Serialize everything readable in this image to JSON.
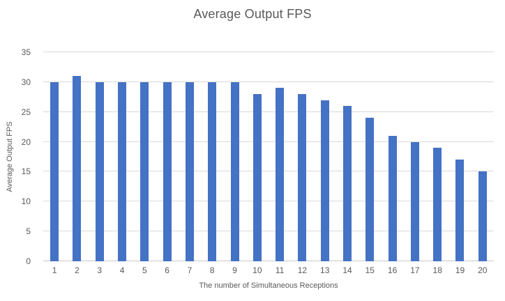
{
  "chart_data": {
    "type": "bar",
    "title": "Average Output FPS",
    "xlabel": "The number of Simultaneous Receptions",
    "ylabel": "Average Output FPS",
    "categories": [
      "1",
      "2",
      "3",
      "4",
      "5",
      "6",
      "7",
      "8",
      "9",
      "10",
      "11",
      "12",
      "13",
      "14",
      "15",
      "16",
      "17",
      "18",
      "19",
      "20"
    ],
    "values": [
      30,
      31,
      30,
      30,
      30,
      30,
      30,
      30,
      30,
      28,
      29,
      28,
      27,
      26,
      24,
      21,
      20,
      19,
      17,
      15
    ],
    "ylim": [
      0,
      35
    ],
    "yticks": [
      0,
      5,
      10,
      15,
      20,
      25,
      30,
      35
    ],
    "grid": true,
    "legend": "none",
    "bar_color": "#4472C4",
    "gridline_color": "#D9D9D9",
    "axis_line_color": "#C9C7C7",
    "text_color": "#595959"
  }
}
